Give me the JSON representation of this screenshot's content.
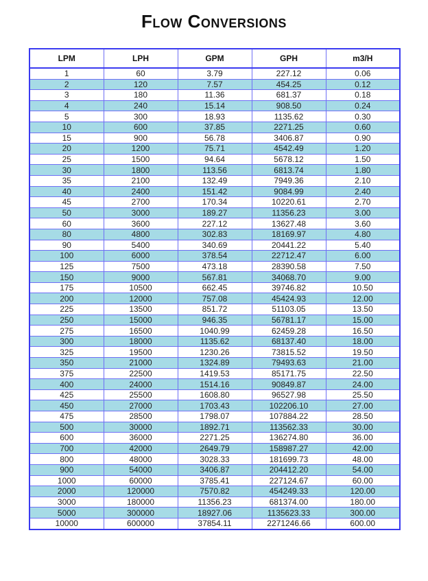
{
  "title": "Flow Conversions",
  "colors": {
    "border": "#3a3af0",
    "stripe": "#a6dbe6"
  },
  "columns": [
    "LPM",
    "LPH",
    "GPM",
    "GPH",
    "m3/H"
  ],
  "rows": [
    [
      "1",
      "60",
      "3.79",
      "227.12",
      "0.06"
    ],
    [
      "2",
      "120",
      "7.57",
      "454.25",
      "0.12"
    ],
    [
      "3",
      "180",
      "11.36",
      "681.37",
      "0.18"
    ],
    [
      "4",
      "240",
      "15.14",
      "908.50",
      "0.24"
    ],
    [
      "5",
      "300",
      "18.93",
      "1135.62",
      "0.30"
    ],
    [
      "10",
      "600",
      "37.85",
      "2271.25",
      "0.60"
    ],
    [
      "15",
      "900",
      "56.78",
      "3406.87",
      "0.90"
    ],
    [
      "20",
      "1200",
      "75.71",
      "4542.49",
      "1.20"
    ],
    [
      "25",
      "1500",
      "94.64",
      "5678.12",
      "1.50"
    ],
    [
      "30",
      "1800",
      "113.56",
      "6813.74",
      "1.80"
    ],
    [
      "35",
      "2100",
      "132.49",
      "7949.36",
      "2.10"
    ],
    [
      "40",
      "2400",
      "151.42",
      "9084.99",
      "2.40"
    ],
    [
      "45",
      "2700",
      "170.34",
      "10220.61",
      "2.70"
    ],
    [
      "50",
      "3000",
      "189.27",
      "11356.23",
      "3.00"
    ],
    [
      "60",
      "3600",
      "227.12",
      "13627.48",
      "3.60"
    ],
    [
      "80",
      "4800",
      "302.83",
      "18169.97",
      "4.80"
    ],
    [
      "90",
      "5400",
      "340.69",
      "20441.22",
      "5.40"
    ],
    [
      "100",
      "6000",
      "378.54",
      "22712.47",
      "6.00"
    ],
    [
      "125",
      "7500",
      "473.18",
      "28390.58",
      "7.50"
    ],
    [
      "150",
      "9000",
      "567.81",
      "34068.70",
      "9.00"
    ],
    [
      "175",
      "10500",
      "662.45",
      "39746.82",
      "10.50"
    ],
    [
      "200",
      "12000",
      "757.08",
      "45424.93",
      "12.00"
    ],
    [
      "225",
      "13500",
      "851.72",
      "51103.05",
      "13.50"
    ],
    [
      "250",
      "15000",
      "946.35",
      "56781.17",
      "15.00"
    ],
    [
      "275",
      "16500",
      "1040.99",
      "62459.28",
      "16.50"
    ],
    [
      "300",
      "18000",
      "1135.62",
      "68137.40",
      "18.00"
    ],
    [
      "325",
      "19500",
      "1230.26",
      "73815.52",
      "19.50"
    ],
    [
      "350",
      "21000",
      "1324.89",
      "79493.63",
      "21.00"
    ],
    [
      "375",
      "22500",
      "1419.53",
      "85171.75",
      "22.50"
    ],
    [
      "400",
      "24000",
      "1514.16",
      "90849.87",
      "24.00"
    ],
    [
      "425",
      "25500",
      "1608.80",
      "96527.98",
      "25.50"
    ],
    [
      "450",
      "27000",
      "1703.43",
      "102206.10",
      "27.00"
    ],
    [
      "475",
      "28500",
      "1798.07",
      "107884.22",
      "28.50"
    ],
    [
      "500",
      "30000",
      "1892.71",
      "113562.33",
      "30.00"
    ],
    [
      "600",
      "36000",
      "2271.25",
      "136274.80",
      "36.00"
    ],
    [
      "700",
      "42000",
      "2649.79",
      "158987.27",
      "42.00"
    ],
    [
      "800",
      "48000",
      "3028.33",
      "181699.73",
      "48.00"
    ],
    [
      "900",
      "54000",
      "3406.87",
      "204412.20",
      "54.00"
    ],
    [
      "1000",
      "60000",
      "3785.41",
      "227124.67",
      "60.00"
    ],
    [
      "2000",
      "120000",
      "7570.82",
      "454249.33",
      "120.00"
    ],
    [
      "3000",
      "180000",
      "11356.23",
      "681374.00",
      "180.00"
    ],
    [
      "5000",
      "300000",
      "18927.06",
      "1135623.33",
      "300.00"
    ],
    [
      "10000",
      "600000",
      "37854.11",
      "2271246.66",
      "600.00"
    ]
  ]
}
